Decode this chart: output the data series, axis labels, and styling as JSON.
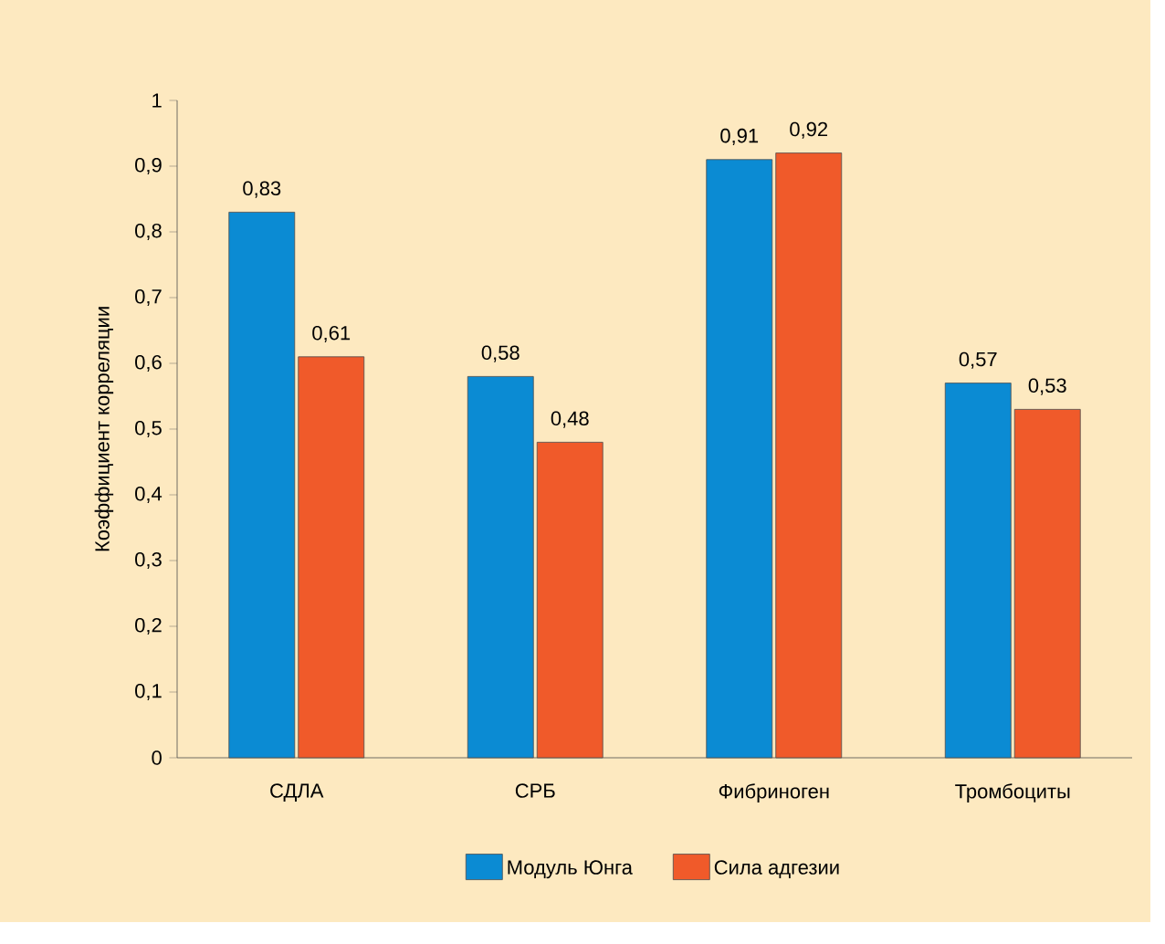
{
  "chart_data": {
    "type": "bar",
    "categories": [
      "СДЛА",
      "СРБ",
      "Фибриноген",
      "Тромбоциты"
    ],
    "ylabel": "Коэффициент корреляции",
    "ylim": [
      0,
      1
    ],
    "yticks": [
      0,
      {
        "value": 0.1,
        "label": "0,1"
      },
      {
        "value": 0.2,
        "label": "0,2"
      },
      {
        "value": 0.3,
        "label": "0,3"
      },
      {
        "value": 0.4,
        "label": "0,4"
      },
      {
        "value": 0.5,
        "label": "0,5"
      },
      {
        "value": 0.6,
        "label": "0,6"
      },
      {
        "value": 0.7,
        "label": "0,7"
      },
      {
        "value": 0.8,
        "label": "0,8"
      },
      {
        "value": 0.9,
        "label": "0,9"
      },
      1
    ],
    "series": [
      {
        "name": "Модуль Юнга",
        "color": "#0b8bd3",
        "values": [
          0.83,
          0.58,
          0.91,
          0.57
        ],
        "value_labels": [
          "0,83",
          "0,58",
          "0,91",
          "0,57"
        ]
      },
      {
        "name": "Сила адгезии",
        "color": "#f05a2a",
        "values": [
          0.61,
          0.48,
          0.92,
          0.53
        ],
        "value_labels": [
          "0,61",
          "0,48",
          "0,92",
          "0,53"
        ]
      }
    ],
    "legend": "bottom",
    "grid": false
  }
}
